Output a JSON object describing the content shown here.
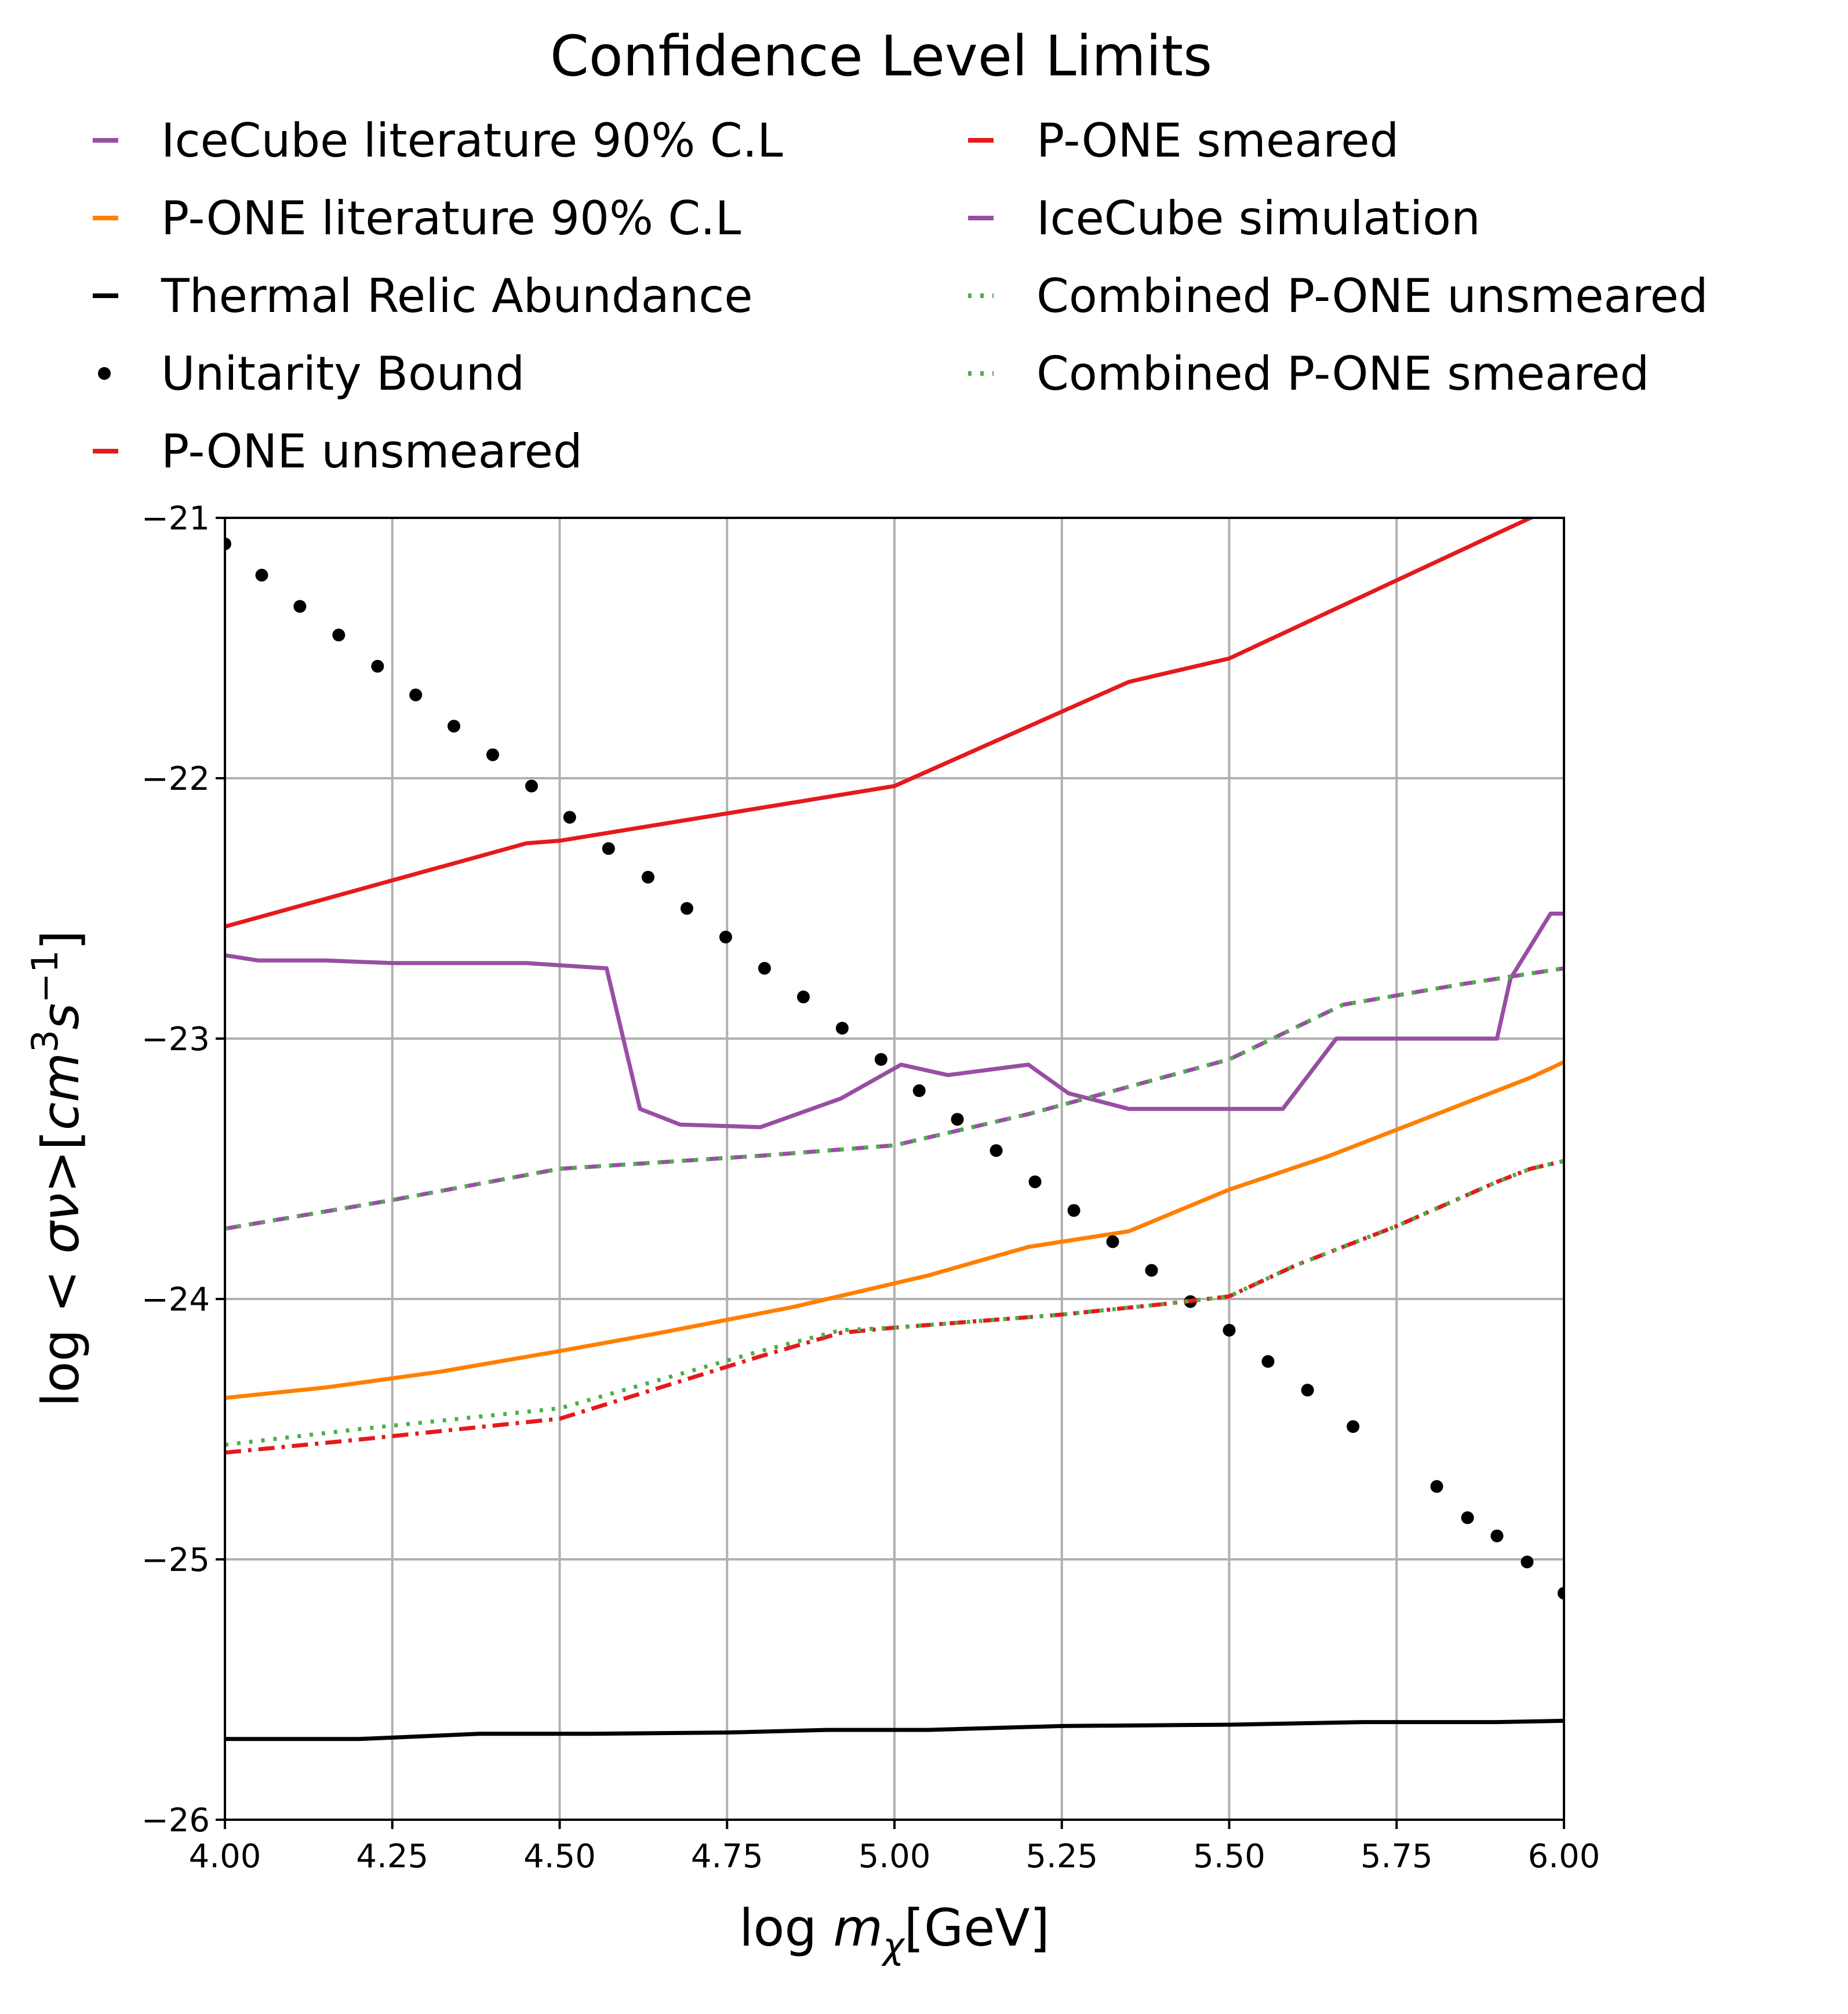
{
  "chart_data": {
    "type": "line",
    "title": "Confidence Level Limits",
    "xlabel": "log m_χ[GeV]",
    "ylabel": "log <σν>[cm³s⁻¹]",
    "xlim": [
      4.0,
      6.0
    ],
    "ylim": [
      -26,
      -21
    ],
    "xticks": [
      "4.00",
      "4.25",
      "4.50",
      "4.75",
      "5.00",
      "5.25",
      "5.50",
      "5.75",
      "6.00"
    ],
    "yticks": [
      "−21",
      "−22",
      "−23",
      "−24",
      "−25",
      "−26"
    ],
    "grid": true,
    "legend_position": "top",
    "series": [
      {
        "name": "IceCube literature 90% C.L",
        "color": "#984ea3",
        "style": "solid",
        "x": [
          4.0,
          4.05,
          4.15,
          4.25,
          4.45,
          4.57,
          4.62,
          4.68,
          4.8,
          4.92,
          5.01,
          5.08,
          5.2,
          5.26,
          5.35,
          5.45,
          5.58,
          5.66,
          5.75,
          5.9,
          5.92,
          5.98,
          6.0
        ],
        "y": [
          -22.68,
          -22.7,
          -22.7,
          -22.71,
          -22.71,
          -22.73,
          -23.27,
          -23.33,
          -23.34,
          -23.23,
          -23.1,
          -23.14,
          -23.1,
          -23.21,
          -23.27,
          -23.27,
          -23.27,
          -23.0,
          -23.0,
          -23.0,
          -22.77,
          -22.52,
          -22.52
        ]
      },
      {
        "name": "P-ONE literature 90% C.L",
        "color": "#ff7f00",
        "style": "solid",
        "x": [
          4.0,
          4.15,
          4.32,
          4.5,
          4.65,
          4.85,
          5.05,
          5.2,
          5.35,
          5.5,
          5.65,
          5.8,
          5.95,
          6.0
        ],
        "y": [
          -24.38,
          -24.34,
          -24.28,
          -24.2,
          -24.13,
          -24.03,
          -23.91,
          -23.8,
          -23.74,
          -23.58,
          -23.45,
          -23.3,
          -23.15,
          -23.09
        ]
      },
      {
        "name": "Thermal Relic Abundance",
        "color": "#000000",
        "style": "solid",
        "x": [
          4.0,
          4.2,
          4.38,
          4.55,
          4.75,
          4.9,
          5.05,
          5.25,
          5.5,
          5.7,
          5.9,
          6.0
        ],
        "y": [
          -25.69,
          -25.69,
          -25.67,
          -25.67,
          -25.665,
          -25.655,
          -25.655,
          -25.64,
          -25.635,
          -25.625,
          -25.625,
          -25.62
        ]
      },
      {
        "name": "Unitarity Bound",
        "color": "#000000",
        "style": "dots",
        "x": [
          4.0,
          4.055,
          4.112,
          4.17,
          4.228,
          4.285,
          4.342,
          4.4,
          4.458,
          4.515,
          4.573,
          4.632,
          4.69,
          4.748,
          4.806,
          4.864,
          4.922,
          4.98,
          5.037,
          5.094,
          5.152,
          5.21,
          5.268,
          5.326,
          5.384,
          5.442,
          5.5,
          5.558,
          5.617,
          5.685,
          5.81,
          5.856,
          5.9,
          5.945,
          6.0
        ],
        "y": [
          -21.1,
          -21.22,
          -21.34,
          -21.45,
          -21.57,
          -21.68,
          -21.8,
          -21.91,
          -22.03,
          -22.15,
          -22.27,
          -22.38,
          -22.5,
          -22.61,
          -22.73,
          -22.84,
          -22.96,
          -23.08,
          -23.2,
          -23.31,
          -23.43,
          -23.55,
          -23.66,
          -23.78,
          -23.89,
          -24.01,
          -24.12,
          -24.24,
          -24.35,
          -24.49,
          -24.72,
          -24.84,
          -24.91,
          -25.01,
          -25.13
        ]
      },
      {
        "name": "P-ONE unsmeared",
        "color": "#e41a1c",
        "style": "dashdot",
        "x": [
          4.0,
          4.2,
          4.35,
          4.5,
          4.65,
          4.8,
          4.92,
          5.0,
          5.1,
          5.25,
          5.4,
          5.5,
          5.6,
          5.75,
          5.9,
          5.95,
          6.0
        ],
        "y": [
          -24.59,
          -24.54,
          -24.5,
          -24.46,
          -24.34,
          -24.22,
          -24.13,
          -24.11,
          -24.09,
          -24.06,
          -24.02,
          -23.99,
          -23.87,
          -23.72,
          -23.55,
          -23.5,
          -23.47
        ]
      },
      {
        "name": "P-ONE smeared",
        "color": "#e41a1c",
        "style": "solid",
        "x": [
          4.0,
          4.45,
          4.5,
          5.0,
          5.35,
          5.5,
          5.95,
          6.0
        ],
        "y": [
          -22.57,
          -22.25,
          -22.24,
          -22.03,
          -21.63,
          -21.54,
          -21.0,
          -20.95
        ]
      },
      {
        "name": "IceCube simulation",
        "color": "#984ea3",
        "style": "dashed",
        "x": [
          4.0,
          4.25,
          4.5,
          4.8,
          5.0,
          5.2,
          5.4,
          5.5,
          5.67,
          5.85,
          6.0
        ],
        "y": [
          -23.73,
          -23.62,
          -23.5,
          -23.45,
          -23.41,
          -23.29,
          -23.15,
          -23.08,
          -22.87,
          -22.79,
          -22.73
        ]
      },
      {
        "name": "Combined P-ONE unsmeared",
        "color": "#4daf4a",
        "style": "dotted",
        "x": [
          4.0,
          4.25,
          4.5,
          4.8,
          5.0,
          5.2,
          5.4,
          5.5,
          5.67,
          5.85,
          6.0
        ],
        "y": [
          -23.73,
          -23.62,
          -23.5,
          -23.45,
          -23.41,
          -23.29,
          -23.15,
          -23.08,
          -22.87,
          -22.79,
          -22.73
        ]
      },
      {
        "name": "Combined P-ONE smeared",
        "color": "#4daf4a",
        "style": "dotted",
        "x": [
          4.0,
          4.2,
          4.35,
          4.5,
          4.65,
          4.8,
          4.92,
          5.0,
          5.1,
          5.25,
          5.4,
          5.5,
          5.6,
          5.75,
          5.9,
          5.95,
          6.0
        ],
        "y": [
          -24.56,
          -24.5,
          -24.46,
          -24.42,
          -24.31,
          -24.2,
          -24.12,
          -24.11,
          -24.09,
          -24.06,
          -24.02,
          -23.99,
          -23.87,
          -23.72,
          -23.55,
          -23.5,
          -23.47
        ]
      }
    ]
  }
}
